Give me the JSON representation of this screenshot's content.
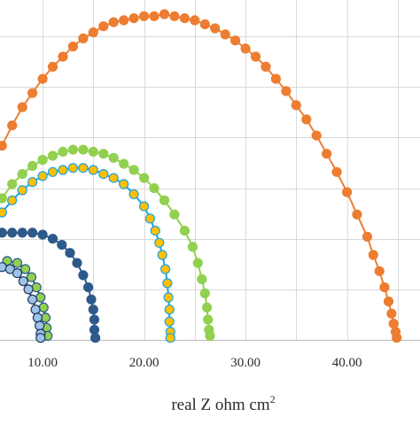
{
  "chart_data": {
    "type": "scatter",
    "title": "",
    "xlabel": "real Z ohm cm",
    "xlabel_superscript": "2",
    "ylabel": "",
    "xlim": [
      5.8,
      47.2
    ],
    "ylim": [
      0,
      16.8
    ],
    "x_ticks": [
      "10.00",
      "20.00",
      "30.00",
      "40.00"
    ],
    "x_tick_values": [
      10,
      20,
      30,
      40
    ],
    "grid": true,
    "legend": "none",
    "colors": {
      "grid": "#d9d9d9",
      "axis": "#bfbfbf",
      "orange": "#ed7d31",
      "green": "#92d050",
      "blue_line": "#1fa3df",
      "yellow_marker": "#ffc000",
      "dark_blue": "#2e5a8a",
      "navy": "#1f3864",
      "light_blue": "#9dc3e6"
    },
    "series": [
      {
        "color_key": "orange",
        "marker_fill": "orange",
        "marker_stroke": "orange",
        "points": [
          [
            6,
            9.6
          ],
          [
            7,
            10.6
          ],
          [
            8,
            11.5
          ],
          [
            9,
            12.2
          ],
          [
            10,
            12.9
          ],
          [
            11,
            13.5
          ],
          [
            12,
            14.0
          ],
          [
            13,
            14.5
          ],
          [
            14,
            14.9
          ],
          [
            15,
            15.2
          ],
          [
            16,
            15.5
          ],
          [
            17,
            15.7
          ],
          [
            18,
            15.8
          ],
          [
            19,
            15.9
          ],
          [
            20,
            16.0
          ],
          [
            21,
            16.0
          ],
          [
            22,
            16.1
          ],
          [
            23,
            16.0
          ],
          [
            24,
            15.9
          ],
          [
            25,
            15.8
          ],
          [
            26,
            15.6
          ],
          [
            27,
            15.4
          ],
          [
            28,
            15.1
          ],
          [
            29,
            14.8
          ],
          [
            30,
            14.4
          ],
          [
            31,
            14.0
          ],
          [
            32,
            13.5
          ],
          [
            33,
            12.9
          ],
          [
            34,
            12.3
          ],
          [
            35,
            11.6
          ],
          [
            36,
            10.9
          ],
          [
            37,
            10.1
          ],
          [
            38,
            9.2
          ],
          [
            39,
            8.3
          ],
          [
            40,
            7.3
          ],
          [
            41,
            6.2
          ],
          [
            42,
            5.1
          ],
          [
            42.6,
            4.2
          ],
          [
            43.2,
            3.4
          ],
          [
            43.7,
            2.6
          ],
          [
            44.1,
            1.9
          ],
          [
            44.4,
            1.3
          ],
          [
            44.6,
            0.8
          ],
          [
            44.8,
            0.4
          ],
          [
            44.9,
            0.1
          ]
        ]
      },
      {
        "color_key": "green",
        "marker_fill": "green",
        "marker_stroke": "green",
        "points": [
          [
            6,
            7.0
          ],
          [
            7,
            7.7
          ],
          [
            8,
            8.2
          ],
          [
            9,
            8.6
          ],
          [
            10,
            8.9
          ],
          [
            11,
            9.1
          ],
          [
            12,
            9.3
          ],
          [
            13,
            9.4
          ],
          [
            14,
            9.4
          ],
          [
            15,
            9.3
          ],
          [
            16,
            9.2
          ],
          [
            17,
            9.0
          ],
          [
            18,
            8.7
          ],
          [
            19,
            8.4
          ],
          [
            20,
            8.0
          ],
          [
            21,
            7.5
          ],
          [
            22,
            6.9
          ],
          [
            23,
            6.2
          ],
          [
            24,
            5.4
          ],
          [
            24.8,
            4.6
          ],
          [
            25.3,
            3.8
          ],
          [
            25.7,
            3.0
          ],
          [
            26,
            2.3
          ],
          [
            26.2,
            1.6
          ],
          [
            26.3,
            1.0
          ],
          [
            26.4,
            0.5
          ],
          [
            26.5,
            0.2
          ]
        ]
      },
      {
        "color_key": "blue_line",
        "marker_fill": "yellow_marker",
        "marker_stroke": "blue_line",
        "points": [
          [
            6,
            6.3
          ],
          [
            7,
            6.9
          ],
          [
            8,
            7.4
          ],
          [
            9,
            7.8
          ],
          [
            10,
            8.1
          ],
          [
            11,
            8.3
          ],
          [
            12,
            8.4
          ],
          [
            13,
            8.5
          ],
          [
            14,
            8.5
          ],
          [
            15,
            8.4
          ],
          [
            16,
            8.2
          ],
          [
            17,
            8.0
          ],
          [
            18,
            7.7
          ],
          [
            19,
            7.2
          ],
          [
            20,
            6.6
          ],
          [
            20.6,
            6.0
          ],
          [
            21.1,
            5.4
          ],
          [
            21.5,
            4.8
          ],
          [
            21.8,
            4.2
          ],
          [
            22.1,
            3.5
          ],
          [
            22.3,
            2.8
          ],
          [
            22.4,
            2.1
          ],
          [
            22.5,
            1.5
          ],
          [
            22.5,
            0.9
          ],
          [
            22.6,
            0.4
          ],
          [
            22.6,
            0.1
          ]
        ]
      },
      {
        "color_key": "dark_blue",
        "marker_fill": "dark_blue",
        "marker_stroke": "dark_blue",
        "points": [
          [
            6,
            5.3
          ],
          [
            7,
            5.3
          ],
          [
            8,
            5.3
          ],
          [
            9,
            5.3
          ],
          [
            10,
            5.2
          ],
          [
            11,
            5.0
          ],
          [
            11.9,
            4.7
          ],
          [
            12.7,
            4.3
          ],
          [
            13.4,
            3.8
          ],
          [
            14,
            3.2
          ],
          [
            14.5,
            2.6
          ],
          [
            14.8,
            2.0
          ],
          [
            15,
            1.5
          ],
          [
            15.1,
            1.0
          ],
          [
            15.1,
            0.5
          ],
          [
            15.2,
            0.1
          ]
        ]
      },
      {
        "color_key": "dark_blue",
        "marker_fill": "green",
        "marker_stroke": "dark_blue",
        "points": [
          [
            6.5,
            3.9
          ],
          [
            7.5,
            3.8
          ],
          [
            8.3,
            3.5
          ],
          [
            8.9,
            3.1
          ],
          [
            9.4,
            2.6
          ],
          [
            9.8,
            2.1
          ],
          [
            10.1,
            1.6
          ],
          [
            10.3,
            1.1
          ],
          [
            10.4,
            0.6
          ],
          [
            10.5,
            0.2
          ]
        ]
      },
      {
        "color_key": "navy",
        "marker_fill": "light_blue",
        "marker_stroke": "navy",
        "points": [
          [
            6,
            3.6
          ],
          [
            6.8,
            3.5
          ],
          [
            7.5,
            3.3
          ],
          [
            8.1,
            2.9
          ],
          [
            8.6,
            2.5
          ],
          [
            9,
            2.0
          ],
          [
            9.3,
            1.5
          ],
          [
            9.5,
            1.1
          ],
          [
            9.7,
            0.7
          ],
          [
            9.8,
            0.3
          ],
          [
            9.8,
            0.1
          ]
        ]
      }
    ]
  }
}
